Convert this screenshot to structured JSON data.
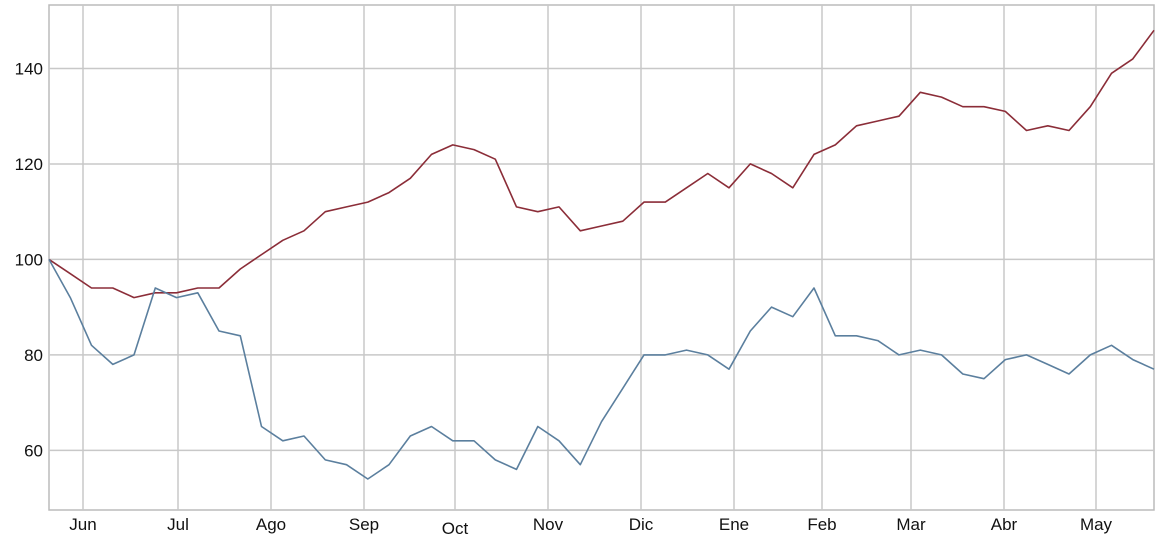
{
  "chart_data": {
    "type": "line",
    "title": "",
    "xlabel": "",
    "ylabel": "",
    "ylim": [
      47.5,
      153.3
    ],
    "grid": true,
    "legend": "none",
    "yticks": [
      60,
      80,
      100,
      120,
      140
    ],
    "xtick_labels": [
      "Jun",
      "Jul",
      "Ago",
      "Sep",
      "Oct",
      "Nov",
      "Dic",
      "Ene",
      "Feb",
      "Mar",
      "Abr",
      "May"
    ],
    "x_sampling": "weekly",
    "series": [
      {
        "color": "#8b2d38",
        "values": [
          100,
          97,
          94,
          94,
          92,
          93,
          93,
          94,
          94,
          98,
          101,
          104,
          106,
          110,
          111,
          112,
          114,
          117,
          122,
          124,
          123,
          121,
          111,
          110,
          111,
          106,
          107,
          108,
          112,
          112,
          115,
          118,
          115,
          120,
          118,
          115,
          122,
          124,
          128,
          129,
          130,
          135,
          134,
          132,
          132,
          131,
          127,
          128,
          127,
          132,
          139,
          142,
          148
        ]
      },
      {
        "color": "#5b7f9e",
        "values": [
          100,
          92,
          82,
          78,
          80,
          94,
          92,
          93,
          85,
          84,
          65,
          62,
          63,
          58,
          57,
          54,
          57,
          63,
          65,
          62,
          62,
          58,
          56,
          65,
          62,
          57,
          66,
          73,
          80,
          80,
          81,
          80,
          77,
          85,
          90,
          88,
          94,
          84,
          84,
          83,
          80,
          81,
          80,
          76,
          75,
          79,
          80,
          78,
          76,
          80,
          82,
          79,
          77
        ]
      }
    ]
  }
}
